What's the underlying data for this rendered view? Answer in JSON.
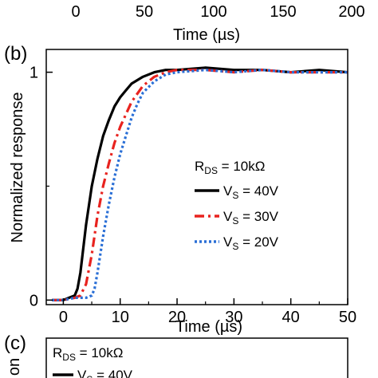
{
  "top_panel_fragment": {
    "xticks": [
      "0",
      "50",
      "100",
      "150",
      "200"
    ],
    "xlabel": "Time (µs)"
  },
  "chart_data": {
    "type": "line",
    "panel_label": "(b)",
    "title": "",
    "xlabel": "Time (µs)",
    "ylabel": "Normalized response",
    "xlim": [
      -3,
      50
    ],
    "ylim": [
      -0.02,
      1.1
    ],
    "xticks": [
      "0",
      "10",
      "20",
      "30",
      "40",
      "50"
    ],
    "yticks": [
      "0",
      "1"
    ],
    "grid": false,
    "legend_position": "center-right",
    "legend_header": "R_DS = 10kΩ",
    "series": [
      {
        "name": "VS = 40V",
        "color": "#000000",
        "dash": "solid",
        "x": [
          -2,
          0,
          1,
          2,
          2.5,
          3,
          4,
          5,
          6,
          7,
          8,
          9,
          10,
          11,
          12,
          14,
          16,
          18,
          20,
          25,
          30,
          35,
          40,
          45,
          50
        ],
        "y": [
          0,
          0,
          0.01,
          0.02,
          0.05,
          0.12,
          0.33,
          0.5,
          0.62,
          0.72,
          0.79,
          0.85,
          0.89,
          0.92,
          0.95,
          0.98,
          1.0,
          1.01,
          1.01,
          1.02,
          1.01,
          1.01,
          1.0,
          1.01,
          1.0
        ]
      },
      {
        "name": "VS = 30V",
        "color": "#e8231f",
        "dash": "dashed",
        "x": [
          -2,
          0,
          2,
          3,
          4,
          5,
          6,
          7,
          8,
          9,
          10,
          12,
          14,
          16,
          18,
          20,
          25,
          30,
          35,
          40,
          45,
          50
        ],
        "y": [
          0,
          0,
          0.01,
          0.02,
          0.07,
          0.2,
          0.37,
          0.5,
          0.6,
          0.69,
          0.76,
          0.87,
          0.94,
          0.98,
          1.0,
          1.01,
          1.01,
          1.0,
          1.01,
          1.0,
          1.0,
          1.0
        ]
      },
      {
        "name": "VS = 20V",
        "color": "#2a6fd6",
        "dash": "dotted",
        "x": [
          -2,
          0,
          2,
          4,
          5,
          5.5,
          6,
          7,
          8,
          9,
          10,
          11,
          12,
          13,
          14,
          16,
          18,
          20,
          25,
          30,
          35,
          40,
          45,
          50
        ],
        "y": [
          0,
          0,
          0.01,
          0.01,
          0.02,
          0.05,
          0.12,
          0.28,
          0.42,
          0.54,
          0.64,
          0.72,
          0.8,
          0.86,
          0.91,
          0.96,
          0.99,
          1.0,
          1.01,
          1.0,
          1.01,
          1.0,
          1.0,
          1.0
        ]
      }
    ]
  },
  "bottom_panel_fragment": {
    "panel_label": "(c)",
    "legend_header": "R_DS = 10kΩ",
    "legend_first": "VS = 40V",
    "ylabel_fragment": "on"
  }
}
